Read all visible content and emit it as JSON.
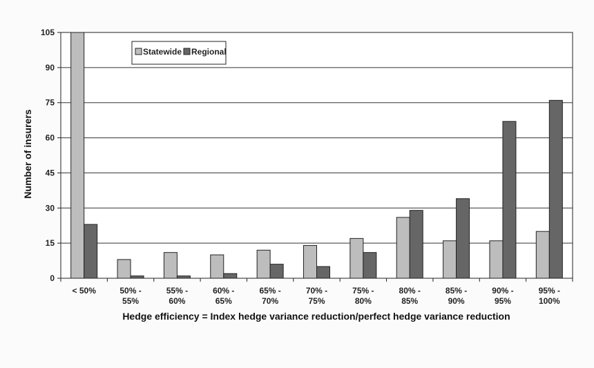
{
  "chart_data": {
    "type": "bar",
    "categories": [
      [
        "< 50%"
      ],
      [
        "50% -",
        "55%"
      ],
      [
        "55% -",
        "60%"
      ],
      [
        "60% -",
        "65%"
      ],
      [
        "65% -",
        "70%"
      ],
      [
        "70% -",
        "75%"
      ],
      [
        "75% -",
        "80%"
      ],
      [
        "80% -",
        "85%"
      ],
      [
        "85% -",
        "90%"
      ],
      [
        "90% -",
        "95%"
      ],
      [
        "95% -",
        "100%"
      ]
    ],
    "series": [
      {
        "name": "Statewide",
        "color": "#bdbdbd",
        "values": [
          105,
          8,
          11,
          10,
          12,
          14,
          17,
          26,
          16,
          16,
          20
        ]
      },
      {
        "name": "Regional",
        "color": "#666666",
        "values": [
          23,
          1,
          1,
          2,
          6,
          5,
          11,
          29,
          34,
          67,
          76
        ]
      }
    ],
    "xlabel": "Hedge efficiency = Index hedge variance reduction/perfect hedge variance reduction",
    "ylabel": "Number of insurers",
    "ylim": [
      0,
      105
    ],
    "yticks": [
      0,
      15,
      30,
      45,
      60,
      75,
      90,
      105
    ],
    "grid": true,
    "legend": "top-left"
  }
}
